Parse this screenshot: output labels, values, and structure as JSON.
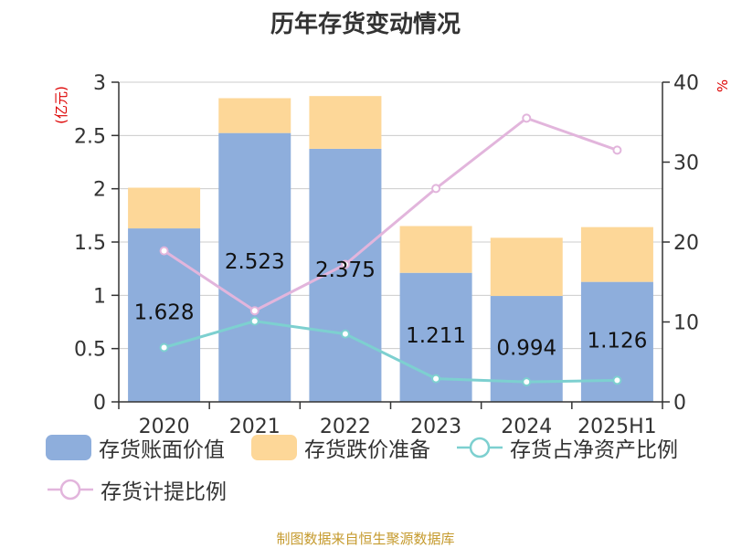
{
  "page": {
    "title": "历年存货变动情况",
    "source": "制图数据来自恒生聚源数据库"
  },
  "colors": {
    "book_value": "#8eaedc",
    "impairment": "#fdd798",
    "ratio_net_assets": "#7dd0d0",
    "provision_ratio": "#e2b5dc",
    "unit_label": "#dd0000",
    "axis": "#333333",
    "grid": "#cccccc",
    "source": "#c59a2d"
  },
  "chart_data": {
    "type": "bar",
    "title": "历年存货变动情况",
    "categories": [
      "2020",
      "2021",
      "2022",
      "2023",
      "2024",
      "2025H1"
    ],
    "y_left": {
      "label": "(亿元)",
      "ticks": [
        "0",
        "0.5",
        "1",
        "1.5",
        "2",
        "2.5",
        "3"
      ],
      "range": [
        0,
        3
      ]
    },
    "y_right": {
      "label": "%",
      "ticks": [
        "0",
        "10",
        "20",
        "30",
        "40"
      ],
      "range": [
        0,
        40
      ]
    },
    "stacked_bars": [
      {
        "name": "存货账面价值",
        "values": [
          1.628,
          2.523,
          2.375,
          1.211,
          0.994,
          1.126
        ],
        "data_labels": [
          "1.628",
          "2.523",
          "2.375",
          "1.211",
          "0.994",
          "1.126"
        ]
      },
      {
        "name": "存货跌价准备",
        "values": [
          0.382,
          0.327,
          0.495,
          0.439,
          0.546,
          0.514
        ]
      }
    ],
    "lines": [
      {
        "name": "存货占净资产比例",
        "axis": "right",
        "values": [
          6.8,
          10.1,
          8.5,
          2.9,
          2.5,
          2.7
        ]
      },
      {
        "name": "存货计提比例",
        "axis": "right",
        "values": [
          18.9,
          11.4,
          17.2,
          26.7,
          35.5,
          31.5
        ]
      }
    ],
    "legend_position": "bottom",
    "grid": true
  }
}
